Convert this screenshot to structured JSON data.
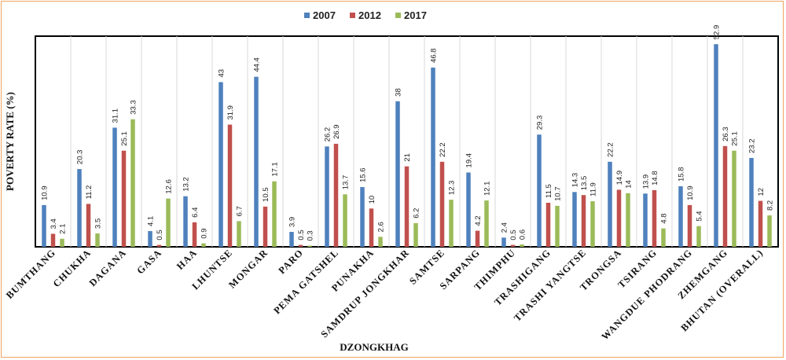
{
  "chart_data": {
    "type": "bar",
    "xlabel": "DZONGKHAG",
    "ylabel": "POVERTY RATE (%)",
    "ylim": [
      0,
      55
    ],
    "grid": "vertical separators between categories",
    "legend_position": "top-center",
    "categories": [
      "BUMTHANG",
      "CHUKHA",
      "DAGANA",
      "GASA",
      "HAA",
      "LHUNTSE",
      "MONGAR",
      "PARO",
      "PEMA GATSHEL",
      "PUNAKHA",
      "SAMDRUP JONGKHAR",
      "SAMTSE",
      "SARPANG",
      "THIMPHU",
      "TRASHIGANG",
      "TRASHI YANGTSE",
      "TRONGSA",
      "TSIRANG",
      "WANGDUE PHODRANG",
      "ZHEMGANG",
      "BHUTAN (OVERALL)"
    ],
    "series": [
      {
        "name": "2007",
        "color": "#4f81bd",
        "values": [
          10.9,
          20.3,
          31.1,
          4.1,
          13.2,
          43,
          44.4,
          3.9,
          26.2,
          15.6,
          38,
          46.8,
          19.4,
          2.4,
          29.3,
          14.3,
          22.2,
          13.9,
          15.8,
          52.9,
          23.2
        ]
      },
      {
        "name": "2012",
        "color": "#c0504d",
        "values": [
          3.4,
          11.2,
          25.1,
          0.5,
          6.4,
          31.9,
          10.5,
          0.5,
          26.9,
          10,
          21,
          22.2,
          4.2,
          0.5,
          11.5,
          13.5,
          14.9,
          14.8,
          10.9,
          26.3,
          12
        ]
      },
      {
        "name": "2017",
        "color": "#9bbb59",
        "values": [
          2.1,
          3.5,
          33.3,
          12.6,
          0.9,
          6.7,
          17.1,
          0.3,
          13.7,
          2.6,
          6.2,
          12.3,
          12.1,
          0.6,
          10.7,
          11.9,
          14,
          4.8,
          5.4,
          25.1,
          8.2
        ]
      }
    ]
  }
}
